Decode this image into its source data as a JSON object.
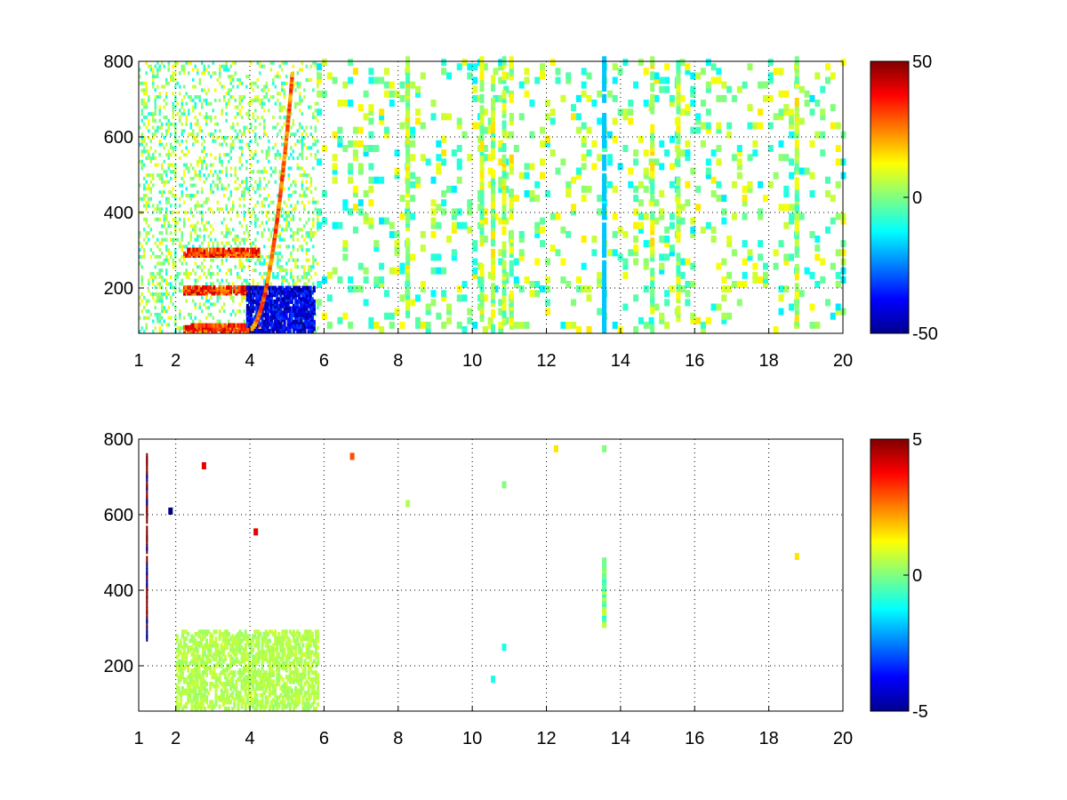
{
  "chart_data": [
    {
      "type": "heatmap",
      "title": "",
      "xlabel": "",
      "ylabel": "",
      "xlim": [
        1,
        20
      ],
      "ylim": [
        80,
        800
      ],
      "xticks": [
        "1",
        "2",
        "4",
        "6",
        "8",
        "10",
        "12",
        "14",
        "16",
        "18",
        "20"
      ],
      "yticks": [
        "200",
        "400",
        "600",
        "800"
      ],
      "grid": true,
      "colorbar": {
        "min": -50,
        "max": 50,
        "ticks": [
          "50",
          "0",
          "-50"
        ],
        "colormap": "jet"
      },
      "features": {
        "dense_region": {
          "x": [
            1,
            5.8
          ],
          "y": [
            80,
            800
          ]
        },
        "strong_positive_rows_y": [
          80,
          180,
          280
        ],
        "strong_negative_band": {
          "x": [
            3.9,
            5.7
          ],
          "y": [
            80,
            200
          ],
          "value": -40
        },
        "positive_curve": {
          "x": [
            3.9,
            5.1
          ],
          "y": [
            80,
            760
          ],
          "value": 30
        },
        "vertical_streaks_x": [
          8.2,
          10.2,
          10.5,
          10.8,
          11.0,
          13.5,
          14.8,
          15.5,
          18.7
        ],
        "sparse_region": {
          "x": [
            5.8,
            20
          ],
          "y": [
            80,
            800
          ],
          "value_range": [
            -15,
            15
          ]
        }
      }
    },
    {
      "type": "heatmap",
      "title": "",
      "xlabel": "",
      "ylabel": "",
      "xlim": [
        1,
        20
      ],
      "ylim": [
        80,
        800
      ],
      "xticks": [
        "1",
        "2",
        "4",
        "6",
        "8",
        "10",
        "12",
        "14",
        "16",
        "18",
        "20"
      ],
      "yticks": [
        "200",
        "400",
        "600",
        "800"
      ],
      "grid": true,
      "colorbar": {
        "min": -5,
        "max": 5,
        "ticks": [
          "5",
          "0",
          "-5"
        ],
        "colormap": "jet"
      },
      "features": {
        "dense_region": {
          "x": [
            2,
            5.8
          ],
          "y": [
            80,
            290
          ],
          "value": 0.5
        },
        "left_edge_streak": {
          "x": 1.2,
          "y": [
            240,
            760
          ],
          "value": 5
        },
        "streak_13_5": {
          "x": 13.5,
          "y": [
            300,
            470
          ],
          "value": 0
        },
        "isolated_points": [
          {
            "x": 6.7,
            "y": 745,
            "value": 3
          },
          {
            "x": 8.2,
            "y": 620,
            "value": 0.5
          },
          {
            "x": 10.8,
            "y": 670,
            "value": 0
          },
          {
            "x": 10.8,
            "y": 240,
            "value": -1
          },
          {
            "x": 10.5,
            "y": 155,
            "value": -1
          },
          {
            "x": 12.2,
            "y": 765,
            "value": 1.5
          },
          {
            "x": 13.5,
            "y": 765,
            "value": 0
          },
          {
            "x": 18.7,
            "y": 480,
            "value": 1.5
          },
          {
            "x": 4.1,
            "y": 545,
            "value": 4
          },
          {
            "x": 2.7,
            "y": 720,
            "value": 4
          },
          {
            "x": 1.8,
            "y": 600,
            "value": -5
          }
        ]
      }
    }
  ]
}
